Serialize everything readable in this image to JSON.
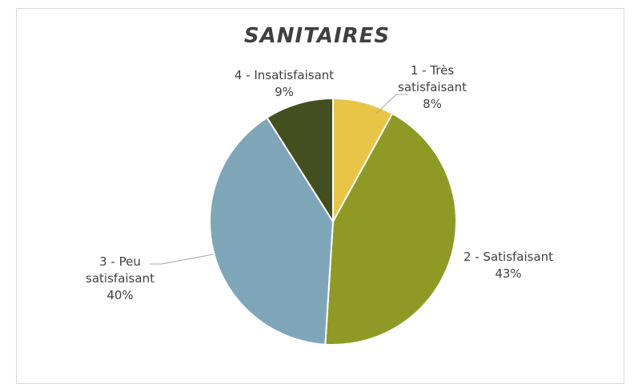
{
  "chart_data": {
    "type": "pie",
    "title": "SANITAIRES",
    "categories": [
      "1 - Très satisfaisant",
      "2 - Satisfaisant",
      "3 - Peu satisfaisant",
      "4 - Insatisfaisant"
    ],
    "values": [
      8,
      43,
      40,
      9
    ],
    "value_labels": [
      "8%",
      "43%",
      "40%",
      "9%"
    ],
    "colors": [
      "#e8c547",
      "#8f9a26",
      "#7ea6b8",
      "#444f1f"
    ]
  }
}
